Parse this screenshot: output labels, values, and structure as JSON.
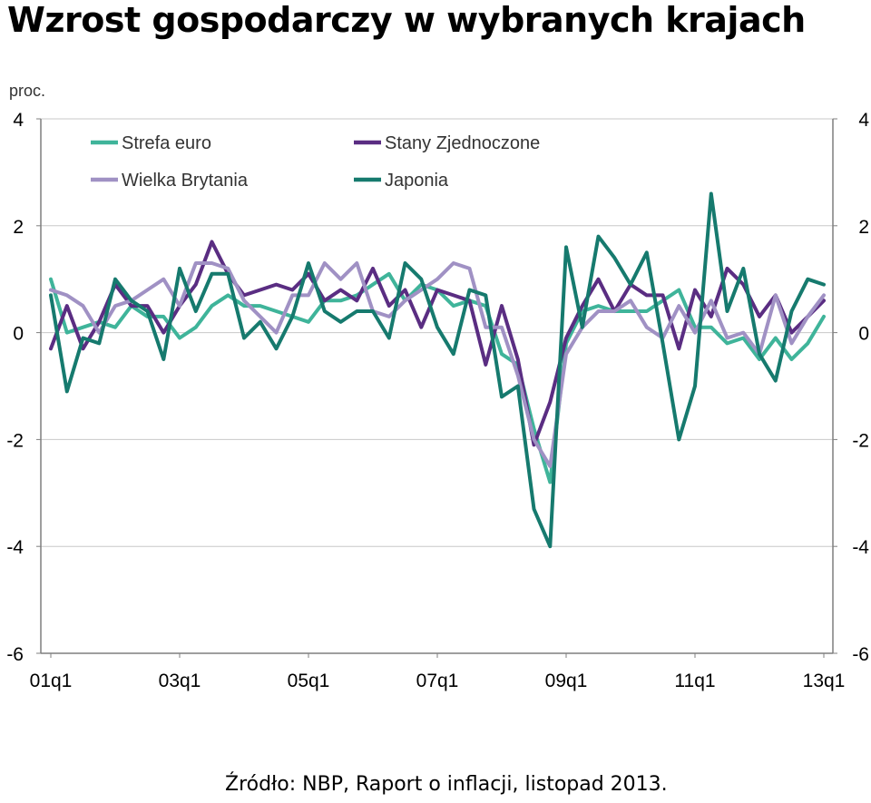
{
  "page": {
    "title": "Wzrost gospodarczy w wybranych krajach",
    "source": "Źródło: NBP, Raport o inflacji, listopad 2013."
  },
  "chart_data": {
    "type": "line",
    "ylabel": "proc.",
    "ylim": [
      -6,
      4
    ],
    "yticks": [
      4,
      2,
      0,
      -2,
      -4,
      -6
    ],
    "ytick_labels": [
      "4",
      "2",
      "0",
      "-2",
      "-4",
      "-6"
    ],
    "x_tick_labels": [
      "01q1",
      "03q1",
      "05q1",
      "07q1",
      "09q1",
      "11q1",
      "13q1"
    ],
    "x_tick_index": [
      0,
      8,
      16,
      24,
      32,
      40,
      48
    ],
    "grid": true,
    "legend": "top-left, two columns",
    "series": [
      {
        "name": "Strefa euro",
        "color": "#3fb49a",
        "values": [
          1.0,
          0.0,
          0.1,
          0.2,
          0.1,
          0.5,
          0.3,
          0.3,
          -0.1,
          0.1,
          0.5,
          0.7,
          0.5,
          0.5,
          0.4,
          0.3,
          0.2,
          0.6,
          0.6,
          0.7,
          0.9,
          1.1,
          0.6,
          0.9,
          0.8,
          0.5,
          0.6,
          0.5,
          -0.4,
          -0.6,
          -1.8,
          -2.8,
          -0.2,
          0.4,
          0.5,
          0.4,
          0.4,
          0.4,
          0.6,
          0.8,
          0.1,
          0.1,
          -0.2,
          -0.1,
          -0.5,
          -0.1,
          -0.5,
          -0.2,
          0.3
        ]
      },
      {
        "name": "Stany Zjednoczone",
        "color": "#5a2d82",
        "values": [
          -0.3,
          0.5,
          -0.3,
          0.2,
          0.9,
          0.5,
          0.5,
          0.0,
          0.5,
          0.9,
          1.7,
          1.1,
          0.7,
          0.8,
          0.9,
          0.8,
          1.1,
          0.6,
          0.8,
          0.6,
          1.2,
          0.5,
          0.8,
          0.1,
          0.8,
          0.7,
          0.6,
          -0.6,
          0.5,
          -0.5,
          -2.1,
          -1.3,
          -0.1,
          0.5,
          1.0,
          0.4,
          0.9,
          0.7,
          0.7,
          -0.3,
          0.8,
          0.3,
          1.2,
          0.9,
          0.3,
          0.7,
          0.0,
          0.3,
          0.6
        ]
      },
      {
        "name": "Wielka Brytania",
        "color": "#a091c4",
        "values": [
          0.8,
          0.7,
          0.5,
          0.0,
          0.5,
          0.6,
          0.8,
          1.0,
          0.5,
          1.3,
          1.3,
          1.2,
          0.6,
          0.3,
          0.0,
          0.7,
          0.7,
          1.3,
          1.0,
          1.3,
          0.4,
          0.3,
          0.6,
          0.8,
          1.0,
          1.3,
          1.2,
          0.1,
          0.1,
          -0.8,
          -2.0,
          -2.5,
          -0.4,
          0.1,
          0.4,
          0.4,
          0.6,
          0.1,
          -0.1,
          0.5,
          0.0,
          0.6,
          -0.1,
          0.0,
          -0.4,
          0.7,
          -0.2,
          0.3,
          0.7
        ]
      },
      {
        "name": "Japonia",
        "color": "#167a6e",
        "values": [
          0.7,
          -1.1,
          -0.1,
          -0.2,
          1.0,
          0.6,
          0.4,
          -0.5,
          1.2,
          0.4,
          1.1,
          1.1,
          -0.1,
          0.2,
          -0.3,
          0.3,
          1.3,
          0.4,
          0.2,
          0.4,
          0.4,
          -0.1,
          1.3,
          1.0,
          0.1,
          -0.4,
          0.8,
          0.7,
          -1.2,
          -1.0,
          -3.3,
          -4.0,
          1.6,
          0.1,
          1.8,
          1.4,
          0.9,
          1.5,
          -0.2,
          -2.0,
          -1.0,
          2.6,
          0.4,
          1.2,
          -0.4,
          -0.9,
          0.4,
          1.0,
          0.9
        ]
      }
    ]
  }
}
